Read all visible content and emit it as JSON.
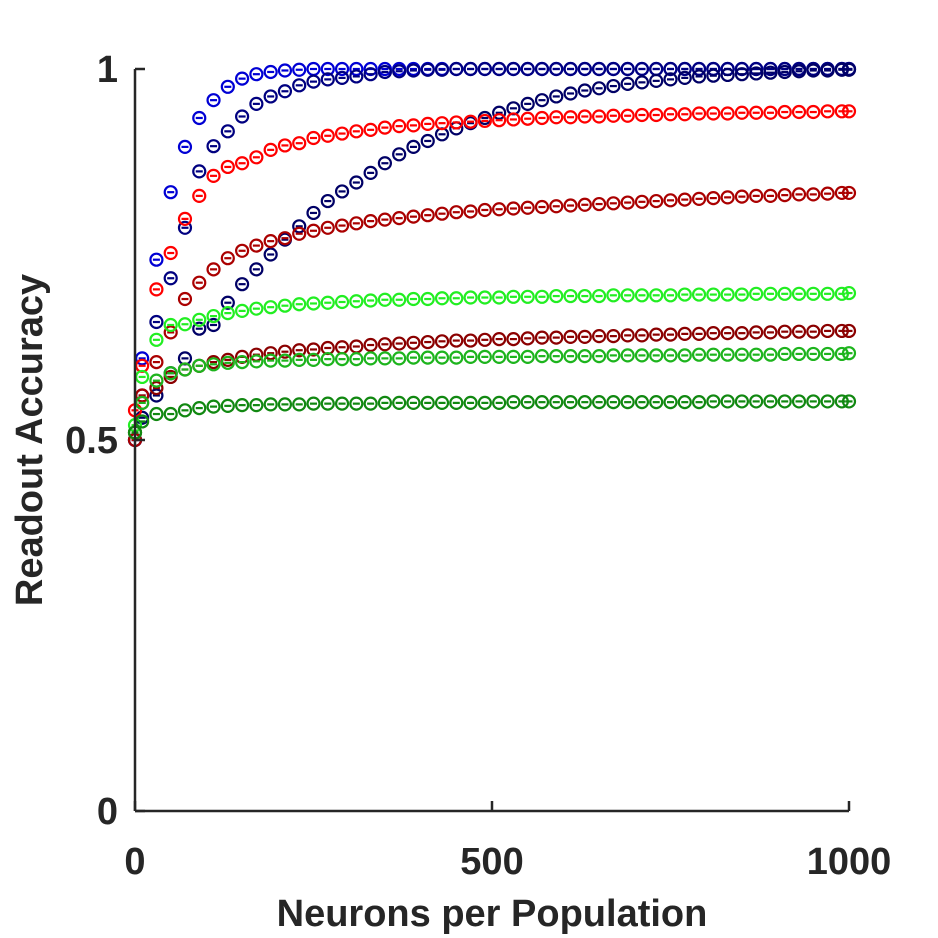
{
  "chart_data": {
    "type": "scatter",
    "xlabel": "Neurons per Population",
    "ylabel": "Readout Accuracy",
    "xlim": [
      0,
      1000
    ],
    "ylim": [
      0,
      1
    ],
    "xticks": [
      0,
      500,
      1000
    ],
    "xtick_labels": [
      "0",
      "500",
      "1000"
    ],
    "yticks": [
      0,
      0.5,
      1
    ],
    "ytick_labels": [
      "0",
      "0.5",
      "1"
    ],
    "grid": false,
    "legend": false,
    "marker": "circle-with-errorbar",
    "x": [
      0,
      10,
      30,
      50,
      70,
      90,
      110,
      130,
      150,
      170,
      190,
      210,
      230,
      250,
      270,
      290,
      310,
      330,
      350,
      370,
      390,
      410,
      430,
      450,
      470,
      490,
      510,
      530,
      550,
      570,
      590,
      610,
      630,
      650,
      670,
      690,
      710,
      730,
      750,
      770,
      790,
      810,
      830,
      850,
      870,
      890,
      910,
      930,
      950,
      970,
      990,
      1000
    ],
    "series": [
      {
        "color": "#0000d4",
        "values": [
          0.5,
          0.61,
          0.743,
          0.834,
          0.895,
          0.934,
          0.958,
          0.976,
          0.987,
          0.993,
          0.996,
          0.998,
          0.999,
          1.0,
          1.0,
          1.0,
          1.0,
          1.0,
          1.0,
          1.0,
          1.0,
          1.0,
          1.0,
          1.0,
          1.0,
          1.0,
          1.0,
          1.0,
          1.0,
          1.0,
          1.0,
          1.0,
          1.0,
          1.0,
          1.0,
          1.0,
          1.0,
          1.0,
          1.0,
          1.0,
          1.0,
          1.0,
          1.0,
          1.0,
          1.0,
          1.0,
          1.0,
          1.0,
          1.0,
          1.0,
          1.0,
          1.0
        ]
      },
      {
        "color": "#000080",
        "values": [
          0.5,
          0.56,
          0.659,
          0.718,
          0.786,
          0.862,
          0.896,
          0.916,
          0.936,
          0.953,
          0.963,
          0.97,
          0.978,
          0.983,
          0.986,
          0.988,
          0.99,
          0.993,
          0.996,
          0.997,
          0.998,
          0.999,
          0.999,
          1.0,
          1.0,
          1.0,
          1.0,
          1.0,
          1.0,
          1.0,
          1.0,
          1.0,
          1.0,
          1.0,
          1.0,
          1.0,
          1.0,
          1.0,
          1.0,
          1.0,
          1.0,
          1.0,
          1.0,
          1.0,
          1.0,
          1.0,
          1.0,
          1.0,
          1.0,
          1.0,
          1.0,
          1.0
        ]
      },
      {
        "color": "#000066",
        "values": [
          0.5,
          0.53,
          0.56,
          0.59,
          0.61,
          0.65,
          0.655,
          0.685,
          0.71,
          0.73,
          0.75,
          0.77,
          0.788,
          0.806,
          0.822,
          0.835,
          0.847,
          0.86,
          0.873,
          0.885,
          0.895,
          0.903,
          0.912,
          0.92,
          0.927,
          0.934,
          0.941,
          0.947,
          0.953,
          0.958,
          0.963,
          0.967,
          0.971,
          0.974,
          0.977,
          0.98,
          0.982,
          0.984,
          0.986,
          0.988,
          0.99,
          0.991,
          0.992,
          0.993,
          0.994,
          0.995,
          0.996,
          0.997,
          0.998,
          0.998,
          0.999,
          0.999
        ]
      },
      {
        "color": "#ff0000",
        "values": [
          0.54,
          0.6,
          0.703,
          0.752,
          0.798,
          0.829,
          0.856,
          0.868,
          0.873,
          0.881,
          0.891,
          0.897,
          0.9,
          0.907,
          0.91,
          0.913,
          0.916,
          0.918,
          0.921,
          0.923,
          0.924,
          0.926,
          0.927,
          0.928,
          0.929,
          0.93,
          0.931,
          0.932,
          0.933,
          0.934,
          0.935,
          0.935,
          0.936,
          0.936,
          0.937,
          0.937,
          0.938,
          0.938,
          0.939,
          0.939,
          0.94,
          0.94,
          0.94,
          0.941,
          0.941,
          0.941,
          0.942,
          0.942,
          0.942,
          0.943,
          0.943,
          0.943
        ]
      },
      {
        "color": "#aa0000",
        "values": [
          0.5,
          0.56,
          0.605,
          0.645,
          0.69,
          0.712,
          0.73,
          0.745,
          0.755,
          0.762,
          0.768,
          0.772,
          0.778,
          0.782,
          0.786,
          0.789,
          0.792,
          0.795,
          0.797,
          0.799,
          0.801,
          0.803,
          0.805,
          0.807,
          0.808,
          0.81,
          0.811,
          0.812,
          0.813,
          0.814,
          0.815,
          0.816,
          0.817,
          0.818,
          0.819,
          0.82,
          0.821,
          0.822,
          0.823,
          0.824,
          0.825,
          0.826,
          0.827,
          0.828,
          0.829,
          0.829,
          0.83,
          0.831,
          0.831,
          0.832,
          0.833,
          0.833
        ]
      },
      {
        "color": "#8b0000",
        "values": [
          0.51,
          0.55,
          0.57,
          0.585,
          0.595,
          0.6,
          0.605,
          0.608,
          0.612,
          0.615,
          0.617,
          0.619,
          0.621,
          0.622,
          0.624,
          0.625,
          0.626,
          0.628,
          0.629,
          0.63,
          0.631,
          0.632,
          0.633,
          0.634,
          0.634,
          0.635,
          0.636,
          0.636,
          0.637,
          0.638,
          0.638,
          0.639,
          0.639,
          0.64,
          0.64,
          0.641,
          0.641,
          0.642,
          0.642,
          0.643,
          0.643,
          0.644,
          0.644,
          0.644,
          0.645,
          0.645,
          0.646,
          0.646,
          0.646,
          0.647,
          0.647,
          0.647
        ]
      },
      {
        "color": "#22ee22",
        "values": [
          0.52,
          0.585,
          0.635,
          0.655,
          0.656,
          0.662,
          0.667,
          0.671,
          0.674,
          0.677,
          0.679,
          0.681,
          0.683,
          0.684,
          0.685,
          0.686,
          0.687,
          0.688,
          0.689,
          0.689,
          0.69,
          0.69,
          0.691,
          0.691,
          0.692,
          0.692,
          0.692,
          0.693,
          0.693,
          0.693,
          0.694,
          0.694,
          0.694,
          0.694,
          0.695,
          0.695,
          0.695,
          0.695,
          0.695,
          0.696,
          0.696,
          0.696,
          0.696,
          0.696,
          0.697,
          0.697,
          0.697,
          0.697,
          0.697,
          0.697,
          0.697,
          0.698
        ]
      },
      {
        "color": "#1db41d",
        "values": [
          0.51,
          0.55,
          0.58,
          0.59,
          0.595,
          0.6,
          0.602,
          0.604,
          0.605,
          0.606,
          0.607,
          0.607,
          0.608,
          0.608,
          0.609,
          0.609,
          0.609,
          0.61,
          0.61,
          0.61,
          0.611,
          0.611,
          0.611,
          0.611,
          0.612,
          0.612,
          0.612,
          0.612,
          0.612,
          0.613,
          0.613,
          0.613,
          0.613,
          0.613,
          0.614,
          0.614,
          0.614,
          0.614,
          0.614,
          0.614,
          0.615,
          0.615,
          0.615,
          0.615,
          0.615,
          0.615,
          0.616,
          0.616,
          0.616,
          0.616,
          0.616,
          0.617
        ]
      },
      {
        "color": "#118811",
        "values": [
          0.51,
          0.525,
          0.535,
          0.535,
          0.54,
          0.543,
          0.545,
          0.546,
          0.547,
          0.547,
          0.548,
          0.548,
          0.548,
          0.549,
          0.549,
          0.549,
          0.549,
          0.549,
          0.55,
          0.55,
          0.55,
          0.55,
          0.55,
          0.55,
          0.55,
          0.55,
          0.55,
          0.551,
          0.551,
          0.551,
          0.551,
          0.551,
          0.551,
          0.551,
          0.551,
          0.551,
          0.551,
          0.551,
          0.551,
          0.551,
          0.551,
          0.552,
          0.552,
          0.552,
          0.552,
          0.552,
          0.552,
          0.552,
          0.552,
          0.552,
          0.552,
          0.552
        ]
      }
    ]
  }
}
